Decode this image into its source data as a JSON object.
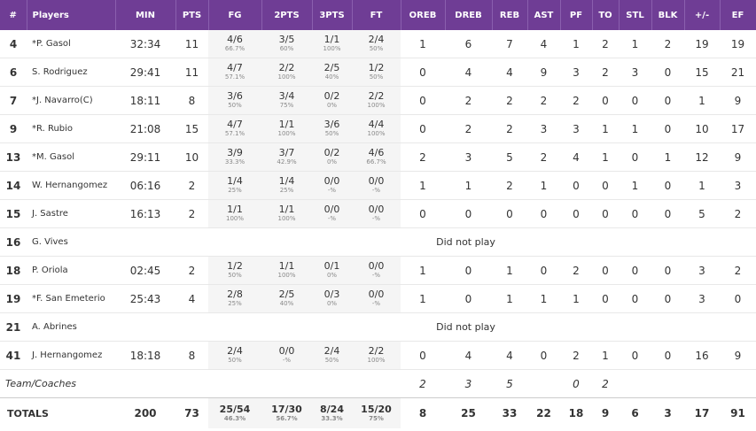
{
  "table": {
    "columns": [
      "#",
      "Players",
      "MIN",
      "PTS",
      "FG",
      "2PTS",
      "3PTS",
      "FT",
      "OREB",
      "DREB",
      "REB",
      "AST",
      "PF",
      "TO",
      "STL",
      "BLK",
      "+/-",
      "EF"
    ],
    "rows": [
      {
        "cells": [
          4,
          "*P. Gasol",
          "32:34",
          11,
          [
            "4/6",
            "66.7%"
          ],
          [
            "3/5",
            "60%"
          ],
          [
            "1/1",
            "100%"
          ],
          [
            "2/4",
            "50%"
          ],
          1,
          6,
          7,
          4,
          1,
          2,
          1,
          2,
          19,
          19
        ]
      },
      {
        "cells": [
          6,
          "S. Rodriguez",
          "29:41",
          11,
          [
            "4/7",
            "57.1%"
          ],
          [
            "2/2",
            "100%"
          ],
          [
            "2/5",
            "40%"
          ],
          [
            "1/2",
            "50%"
          ],
          0,
          4,
          4,
          9,
          3,
          2,
          3,
          0,
          15,
          21
        ]
      },
      {
        "cells": [
          7,
          "*J. Navarro(C)",
          "18:11",
          8,
          [
            "3/6",
            "50%"
          ],
          [
            "3/4",
            "75%"
          ],
          [
            "0/2",
            "0%"
          ],
          [
            "2/2",
            "100%"
          ],
          0,
          2,
          2,
          2,
          2,
          0,
          0,
          0,
          1,
          9
        ]
      },
      {
        "cells": [
          9,
          "*R. Rubio",
          "21:08",
          15,
          [
            "4/7",
            "57.1%"
          ],
          [
            "1/1",
            "100%"
          ],
          [
            "3/6",
            "50%"
          ],
          [
            "4/4",
            "100%"
          ],
          0,
          2,
          2,
          3,
          3,
          1,
          1,
          0,
          10,
          17
        ]
      },
      {
        "cells": [
          13,
          "*M. Gasol",
          "29:11",
          10,
          [
            "3/9",
            "33.3%"
          ],
          [
            "3/7",
            "42.9%"
          ],
          [
            "0/2",
            "0%"
          ],
          [
            "4/6",
            "66.7%"
          ],
          2,
          3,
          5,
          2,
          4,
          1,
          0,
          1,
          12,
          9
        ]
      },
      {
        "cells": [
          14,
          "W. Hernangomez",
          "06:16",
          2,
          [
            "1/4",
            "25%"
          ],
          [
            "1/4",
            "25%"
          ],
          [
            "0/0",
            "-%"
          ],
          [
            "0/0",
            "-%"
          ],
          1,
          1,
          2,
          1,
          0,
          0,
          1,
          0,
          1,
          3
        ]
      },
      {
        "cells": [
          15,
          "J. Sastre",
          "16:13",
          2,
          [
            "1/1",
            "100%"
          ],
          [
            "1/1",
            "100%"
          ],
          [
            "0/0",
            "-%"
          ],
          [
            "0/0",
            "-%"
          ],
          0,
          0,
          0,
          0,
          0,
          0,
          0,
          0,
          5,
          2
        ]
      },
      {
        "number": 16,
        "player": "G. Vives",
        "note": "Did not play"
      },
      {
        "cells": [
          18,
          "P. Oriola",
          "02:45",
          2,
          [
            "1/2",
            "50%"
          ],
          [
            "1/1",
            "100%"
          ],
          [
            "0/1",
            "0%"
          ],
          [
            "0/0",
            "-%"
          ],
          1,
          0,
          1,
          0,
          2,
          0,
          0,
          0,
          3,
          2
        ]
      },
      {
        "cells": [
          19,
          "*F. San Emeterio",
          "25:43",
          4,
          [
            "2/8",
            "25%"
          ],
          [
            "2/5",
            "40%"
          ],
          [
            "0/3",
            "0%"
          ],
          [
            "0/0",
            "-%"
          ],
          1,
          0,
          1,
          1,
          1,
          0,
          0,
          0,
          3,
          0
        ]
      },
      {
        "number": 21,
        "player": "A. Abrines",
        "note": "Did not play"
      },
      {
        "cells": [
          41,
          "J. Hernangomez",
          "18:18",
          8,
          [
            "2/4",
            "50%"
          ],
          [
            "0/0",
            "-%"
          ],
          [
            "2/4",
            "50%"
          ],
          [
            "2/2",
            "100%"
          ],
          0,
          4,
          4,
          0,
          2,
          1,
          0,
          0,
          16,
          9
        ]
      }
    ],
    "team": {
      "cells": [
        "Team/Coaches",
        null,
        null,
        null,
        null,
        null,
        null,
        2,
        3,
        5,
        null,
        0,
        2,
        null,
        null,
        null,
        null
      ]
    },
    "totals": {
      "cells": [
        "TOTALS",
        200,
        73,
        [
          "25/54",
          "46.3%"
        ],
        [
          "17/30",
          "56.7%"
        ],
        [
          "8/24",
          "33.3%"
        ],
        [
          "15/20",
          "75%"
        ],
        8,
        25,
        33,
        22,
        18,
        9,
        6,
        3,
        17,
        91
      ]
    }
  }
}
